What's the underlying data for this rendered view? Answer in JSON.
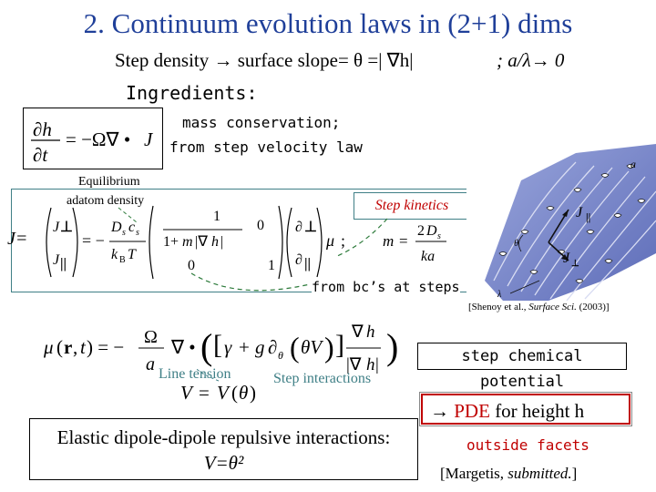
{
  "slide": {
    "title": "2. Continuum evolution laws in (2+1) dims",
    "subtitle": "Step density → surface slope= θ =| ∇h|",
    "subtitle_aside": "; a/λ→ 0",
    "ingredients_label": "Ingredients:",
    "mass_conservation_line1": "mass conservation;",
    "mass_conservation_line2": "from step velocity law",
    "equilibrium_line1": "Equilibrium",
    "equilibrium_line2": "adatom density",
    "step_kinetics": "Step kinetics",
    "j_label": "J=",
    "from_bc": "from bc’s at steps",
    "citation_prefix": "[Shenoy et al., ",
    "citation_journal": "Surface Sci.",
    "citation_suffix": " (2003)]",
    "figure_label_a": "a",
    "figure_label_lambda": "λ",
    "figure_label_theta": "θ",
    "step_chemical_potential": "step chemical potential",
    "line_tension": "Line tension",
    "step_interactions": "Step interactions",
    "pde_arrow": "→ ",
    "pde_word": "PDE",
    "pde_rest": " for height h",
    "elastic_line1": "Elastic dipole-dipole repulsive interactions:",
    "elastic_line2": "V=θ²",
    "outside_facets": "outside facets",
    "margetis_prefix": "[Margetis, ",
    "margetis_italic": "submitted.",
    "margetis_suffix": "]"
  },
  "colors": {
    "title": "#1f3f99",
    "accent_red": "#c00000",
    "accent_teal": "#3f7f86",
    "surface_blue": "#6f7fc8"
  }
}
